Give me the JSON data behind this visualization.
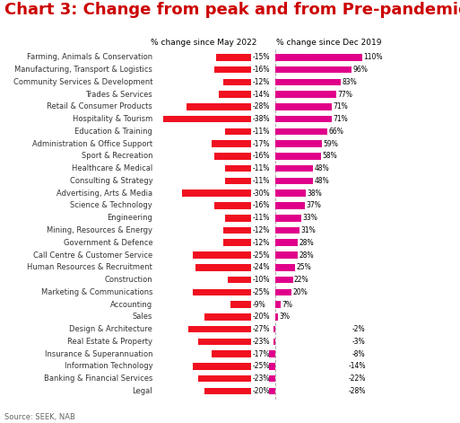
{
  "title": "Chart 3: Change from peak and from Pre-pandemic",
  "subtitle_left": "% change since May 2022",
  "subtitle_right": "% change since Dec 2019",
  "source": "Source: SEEK, NAB",
  "categories": [
    "Farming, Animals & Conservation",
    "Manufacturing, Transport & Logistics",
    "Community Services & Development",
    "Trades & Services",
    "Retail & Consumer Products",
    "Hospitality & Tourism",
    "Education & Training",
    "Administration & Office Support",
    "Sport & Recreation",
    "Healthcare & Medical",
    "Consulting & Strategy",
    "Advertising, Arts & Media",
    "Science & Technology",
    "Engineering",
    "Mining, Resources & Energy",
    "Government & Defence",
    "Call Centre & Customer Service",
    "Human Resources & Recruitment",
    "Construction",
    "Marketing & Communications",
    "Accounting",
    "Sales",
    "Design & Architecture",
    "Real Estate & Property",
    "Insurance & Superannuation",
    "Information Technology",
    "Banking & Financial Services",
    "Legal"
  ],
  "values_may2022": [
    -15,
    -16,
    -12,
    -14,
    -28,
    -38,
    -11,
    -17,
    -16,
    -11,
    -11,
    -30,
    -16,
    -11,
    -12,
    -12,
    -25,
    -24,
    -10,
    -25,
    -9,
    -20,
    -27,
    -23,
    -17,
    -25,
    -23,
    -20
  ],
  "values_dec2019": [
    110,
    96,
    83,
    77,
    71,
    71,
    66,
    59,
    58,
    48,
    48,
    38,
    37,
    33,
    31,
    28,
    28,
    25,
    22,
    20,
    7,
    3,
    -2,
    -3,
    -8,
    -14,
    -22,
    -28
  ],
  "color_red": "#f01020",
  "color_magenta": "#e0008a",
  "color_title": "#cc0000",
  "bg_color": "#ffffff",
  "bar_height": 0.55,
  "fontsize_title": 13,
  "fontsize_labels": 6.0,
  "fontsize_values": 5.5,
  "fontsize_header": 6.5,
  "fontsize_source": 6.0
}
